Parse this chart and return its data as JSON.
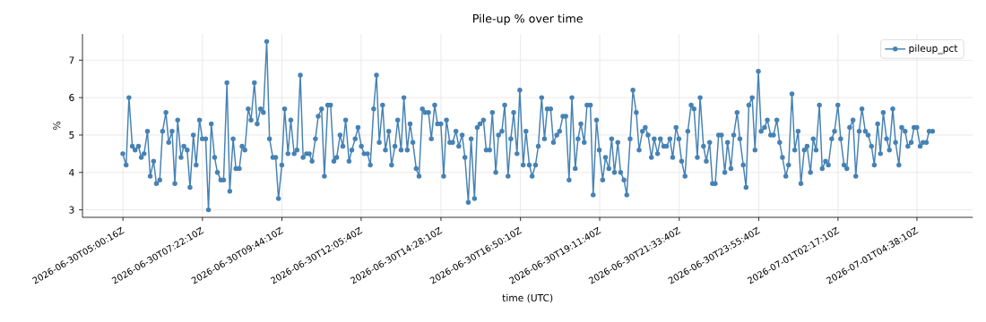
{
  "chart_data": {
    "type": "line",
    "title": "Pile-up % over time",
    "xlabel": "time (UTC)",
    "ylabel": "%",
    "x": [
      "2026-06-30T05:00",
      "2026-06-30T05:06",
      "2026-06-30T05:11",
      "2026-06-30T05:17",
      "2026-06-30T05:22",
      "2026-06-30T05:28",
      "2026-06-30T05:33",
      "2026-06-30T05:38",
      "2026-06-30T05:44",
      "2026-06-30T05:49",
      "2026-06-30T05:55",
      "2026-06-30T06:00",
      "2026-06-30T06:06",
      "2026-06-30T06:11",
      "2026-06-30T06:17",
      "2026-06-30T06:22",
      "2026-06-30T06:28",
      "2026-06-30T06:33",
      "2026-06-30T06:38",
      "2026-06-30T06:44",
      "2026-06-30T06:49",
      "2026-06-30T06:55",
      "2026-06-30T07:00",
      "2026-06-30T07:06",
      "2026-06-30T07:11",
      "2026-06-30T07:17",
      "2026-06-30T07:22",
      "2026-06-30T07:28",
      "2026-06-30T07:33",
      "2026-06-30T07:38",
      "2026-06-30T07:44",
      "2026-06-30T07:49",
      "2026-06-30T07:55",
      "2026-06-30T08:00",
      "2026-06-30T08:06",
      "2026-06-30T08:11",
      "2026-06-30T08:17",
      "2026-06-30T08:22",
      "2026-06-30T08:28",
      "2026-06-30T08:33",
      "2026-06-30T08:38",
      "2026-06-30T08:44",
      "2026-06-30T08:49",
      "2026-06-30T08:55",
      "2026-06-30T09:00",
      "2026-06-30T09:06",
      "2026-06-30T09:11",
      "2026-06-30T09:17",
      "2026-06-30T09:22",
      "2026-06-30T09:28",
      "2026-06-30T09:33",
      "2026-06-30T09:38",
      "2026-06-30T09:44",
      "2026-06-30T09:49",
      "2026-06-30T09:55",
      "2026-06-30T10:00",
      "2026-06-30T10:06",
      "2026-06-30T10:11",
      "2026-06-30T10:17",
      "2026-06-30T10:22",
      "2026-06-30T10:28",
      "2026-06-30T10:33",
      "2026-06-30T10:38",
      "2026-06-30T10:44",
      "2026-06-30T10:49",
      "2026-06-30T10:55",
      "2026-06-30T11:00",
      "2026-06-30T11:06",
      "2026-06-30T11:11",
      "2026-06-30T11:17",
      "2026-06-30T11:22",
      "2026-06-30T11:28",
      "2026-06-30T11:33",
      "2026-06-30T11:38",
      "2026-06-30T11:44",
      "2026-06-30T11:49",
      "2026-06-30T11:55",
      "2026-06-30T12:00",
      "2026-06-30T12:06",
      "2026-06-30T12:11",
      "2026-06-30T12:17",
      "2026-06-30T12:22",
      "2026-06-30T12:28",
      "2026-06-30T12:33",
      "2026-06-30T12:38",
      "2026-06-30T12:44",
      "2026-06-30T12:49",
      "2026-06-30T12:55",
      "2026-06-30T13:00",
      "2026-06-30T13:06",
      "2026-06-30T13:11",
      "2026-06-30T13:17",
      "2026-06-30T13:22",
      "2026-06-30T13:28",
      "2026-06-30T13:33",
      "2026-06-30T13:38",
      "2026-06-30T13:44",
      "2026-06-30T13:49",
      "2026-06-30T13:55",
      "2026-06-30T14:00",
      "2026-06-30T14:06",
      "2026-06-30T14:11",
      "2026-06-30T14:17",
      "2026-06-30T14:22",
      "2026-06-30T14:28",
      "2026-06-30T14:33",
      "2026-06-30T14:38",
      "2026-06-30T14:44",
      "2026-06-30T14:49",
      "2026-06-30T14:55",
      "2026-06-30T15:00",
      "2026-06-30T15:06",
      "2026-06-30T15:11",
      "2026-06-30T15:17",
      "2026-06-30T15:22",
      "2026-06-30T15:28",
      "2026-06-30T15:33",
      "2026-06-30T15:38",
      "2026-06-30T15:44",
      "2026-06-30T15:49",
      "2026-06-30T15:55",
      "2026-06-30T16:00",
      "2026-06-30T16:06",
      "2026-06-30T16:11",
      "2026-06-30T16:17",
      "2026-06-30T16:22",
      "2026-06-30T16:28",
      "2026-06-30T16:33",
      "2026-06-30T16:38",
      "2026-06-30T16:44",
      "2026-06-30T16:49",
      "2026-06-30T16:55",
      "2026-06-30T17:00",
      "2026-06-30T17:06",
      "2026-06-30T17:11",
      "2026-06-30T17:17",
      "2026-06-30T17:22",
      "2026-06-30T17:28",
      "2026-06-30T17:33",
      "2026-06-30T17:38",
      "2026-06-30T17:44",
      "2026-06-30T17:49",
      "2026-06-30T17:55",
      "2026-06-30T18:00",
      "2026-06-30T18:06",
      "2026-06-30T18:11",
      "2026-06-30T18:17",
      "2026-06-30T18:22",
      "2026-06-30T18:28",
      "2026-06-30T18:33",
      "2026-06-30T18:38",
      "2026-06-30T18:44",
      "2026-06-30T18:49",
      "2026-06-30T18:55",
      "2026-06-30T19:00",
      "2026-06-30T19:06",
      "2026-06-30T19:11",
      "2026-06-30T19:17",
      "2026-06-30T19:22",
      "2026-06-30T19:28",
      "2026-06-30T19:33",
      "2026-06-30T19:38",
      "2026-06-30T19:44",
      "2026-06-30T19:49",
      "2026-06-30T19:55",
      "2026-06-30T20:00",
      "2026-06-30T20:06",
      "2026-06-30T20:11",
      "2026-06-30T20:17",
      "2026-06-30T20:22",
      "2026-06-30T20:28",
      "2026-06-30T20:33",
      "2026-06-30T20:38",
      "2026-06-30T20:44",
      "2026-06-30T20:49",
      "2026-06-30T20:55",
      "2026-06-30T21:00",
      "2026-06-30T21:06",
      "2026-06-30T21:11",
      "2026-06-30T21:17",
      "2026-06-30T21:22",
      "2026-06-30T21:28",
      "2026-06-30T21:33",
      "2026-06-30T21:38",
      "2026-06-30T21:44",
      "2026-06-30T21:49",
      "2026-06-30T21:55",
      "2026-06-30T22:00",
      "2026-06-30T22:06",
      "2026-06-30T22:11",
      "2026-06-30T22:17",
      "2026-06-30T22:22",
      "2026-06-30T22:28",
      "2026-06-30T22:33",
      "2026-06-30T22:38",
      "2026-06-30T22:44",
      "2026-06-30T22:49",
      "2026-06-30T22:55",
      "2026-06-30T23:00",
      "2026-06-30T23:06",
      "2026-06-30T23:11",
      "2026-06-30T23:17",
      "2026-06-30T23:22",
      "2026-06-30T23:28",
      "2026-06-30T23:33",
      "2026-06-30T23:38",
      "2026-06-30T23:44",
      "2026-06-30T23:49",
      "2026-06-30T23:55",
      "2026-07-01T00:00",
      "2026-07-01T00:06",
      "2026-07-01T00:11",
      "2026-07-01T00:17",
      "2026-07-01T00:22",
      "2026-07-01T00:28",
      "2026-07-01T00:33",
      "2026-07-01T00:38",
      "2026-07-01T00:44",
      "2026-07-01T00:49",
      "2026-07-01T00:55",
      "2026-07-01T01:00",
      "2026-07-01T01:06",
      "2026-07-01T01:11",
      "2026-07-01T01:17",
      "2026-07-01T01:22",
      "2026-07-01T01:28",
      "2026-07-01T01:33",
      "2026-07-01T01:38",
      "2026-07-01T01:44",
      "2026-07-01T01:49",
      "2026-07-01T01:55",
      "2026-07-01T02:00",
      "2026-07-01T02:06",
      "2026-07-01T02:11",
      "2026-07-01T02:17",
      "2026-07-01T02:22",
      "2026-07-01T02:28",
      "2026-07-01T02:33",
      "2026-07-01T02:38",
      "2026-07-01T02:44",
      "2026-07-01T02:49",
      "2026-07-01T02:55",
      "2026-07-01T03:00",
      "2026-07-01T03:06",
      "2026-07-01T03:11",
      "2026-07-01T03:17",
      "2026-07-01T03:22",
      "2026-07-01T03:28",
      "2026-07-01T03:33",
      "2026-07-01T03:38",
      "2026-07-01T03:44",
      "2026-07-01T03:49",
      "2026-07-01T03:55",
      "2026-07-01T04:00",
      "2026-07-01T04:06",
      "2026-07-01T04:11",
      "2026-07-01T04:17",
      "2026-07-01T04:22",
      "2026-07-01T04:28",
      "2026-07-01T04:33",
      "2026-07-01T04:38",
      "2026-07-01T04:44",
      "2026-07-01T04:49",
      "2026-07-01T04:55",
      "2026-07-01T05:00",
      "2026-07-01T05:06"
    ],
    "series": [
      {
        "name": "pileup_pct",
        "color": "#4682b4",
        "values": [
          4.5,
          4.2,
          6.0,
          4.7,
          4.6,
          4.7,
          4.4,
          4.5,
          5.1,
          3.9,
          4.3,
          3.7,
          3.8,
          5.1,
          5.6,
          4.8,
          5.1,
          3.7,
          5.4,
          4.4,
          4.7,
          4.6,
          3.6,
          5.0,
          4.2,
          5.4,
          4.9,
          4.9,
          3.0,
          5.3,
          4.4,
          4.0,
          3.8,
          3.8,
          6.4,
          3.5,
          4.9,
          4.1,
          4.1,
          4.7,
          4.6,
          5.7,
          5.4,
          6.4,
          5.3,
          5.7,
          5.6,
          7.5,
          4.9,
          4.4,
          4.4,
          3.3,
          4.2,
          5.7,
          4.5,
          5.4,
          4.5,
          4.6,
          6.6,
          4.4,
          4.5,
          4.5,
          4.3,
          4.9,
          5.5,
          5.7,
          3.9,
          5.8,
          5.8,
          4.3,
          4.4,
          5.0,
          4.7,
          5.4,
          4.3,
          4.6,
          4.9,
          5.2,
          4.7,
          4.5,
          4.5,
          4.2,
          5.7,
          6.6,
          4.8,
          5.8,
          4.6,
          5.1,
          4.2,
          4.7,
          5.4,
          4.6,
          6.0,
          4.6,
          5.3,
          4.8,
          4.1,
          3.9,
          5.7,
          5.6,
          5.6,
          4.9,
          5.8,
          5.3,
          5.3,
          3.9,
          5.4,
          4.8,
          4.8,
          5.1,
          4.7,
          5.0,
          4.4,
          3.2,
          4.9,
          3.3,
          5.2,
          5.3,
          5.4,
          4.6,
          4.6,
          5.6,
          4.0,
          5.0,
          5.1,
          5.8,
          3.9,
          4.9,
          5.6,
          4.5,
          6.2,
          4.2,
          5.1,
          4.2,
          3.9,
          4.2,
          4.7,
          6.0,
          4.9,
          5.7,
          5.7,
          4.8,
          5.0,
          5.1,
          5.5,
          5.5,
          3.8,
          6.0,
          4.1,
          4.9,
          5.3,
          4.8,
          5.8,
          5.8,
          3.4,
          5.4,
          4.6,
          3.8,
          4.4,
          4.1,
          4.9,
          4.0,
          4.8,
          4.0,
          3.8,
          3.4,
          4.9,
          6.2,
          5.6,
          4.6,
          5.1,
          5.2,
          5.0,
          4.4,
          4.9,
          4.5,
          4.9,
          4.7,
          4.7,
          4.9,
          4.4,
          5.2,
          4.9,
          4.3,
          3.9,
          5.1,
          5.8,
          5.7,
          4.4,
          6.0,
          4.7,
          4.3,
          4.8,
          3.7,
          3.7,
          5.0,
          5.0,
          4.0,
          4.8,
          4.1,
          5.0,
          5.6,
          4.9,
          4.2,
          3.6,
          5.8,
          6.0,
          4.6,
          6.7,
          5.1,
          5.2,
          5.4,
          5.0,
          5.0,
          5.4,
          4.8,
          4.4,
          3.9,
          4.2,
          6.1,
          4.6,
          5.1,
          3.7,
          4.6,
          4.7,
          4.0,
          4.9,
          4.6,
          5.8,
          4.1,
          4.3,
          4.2,
          4.9,
          5.1,
          5.8,
          4.9,
          4.2,
          4.1,
          5.2,
          5.4,
          3.9,
          5.1,
          5.7,
          5.1,
          5.0,
          4.7,
          4.2,
          5.3,
          4.5,
          5.6,
          4.9,
          4.6,
          5.7,
          4.8,
          4.2,
          5.2,
          5.1,
          4.7,
          4.8,
          5.2,
          5.2,
          4.7,
          4.8,
          4.8,
          5.1,
          5.1
        ]
      }
    ],
    "xlim": [
      "2026-06-30T03:48",
      "2026-07-01T06:18"
    ],
    "ylim": [
      2.8,
      7.7
    ],
    "xticks": [
      {
        "value": "2026-06-30T05:00:16",
        "label": "2026-06-30T05:00:16Z"
      },
      {
        "value": "2026-06-30T07:22:10",
        "label": "2026-06-30T07:22:10Z"
      },
      {
        "value": "2026-06-30T09:44:10",
        "label": "2026-06-30T09:44:10Z"
      },
      {
        "value": "2026-06-30T12:05:40",
        "label": "2026-06-30T12:05:40Z"
      },
      {
        "value": "2026-06-30T14:28:10",
        "label": "2026-06-30T14:28:10Z"
      },
      {
        "value": "2026-06-30T16:50:10",
        "label": "2026-06-30T16:50:10Z"
      },
      {
        "value": "2026-06-30T19:11:40",
        "label": "2026-06-30T19:11:40Z"
      },
      {
        "value": "2026-06-30T21:33:40",
        "label": "2026-06-30T21:33:40Z"
      },
      {
        "value": "2026-06-30T23:55:40",
        "label": "2026-06-30T23:55:40Z"
      },
      {
        "value": "2026-07-01T02:17:10",
        "label": "2026-07-01T02:17:10Z"
      },
      {
        "value": "2026-07-01T04:38:10",
        "label": "2026-07-01T04:38:10Z"
      }
    ],
    "yticks": [
      3,
      4,
      5,
      6,
      7
    ],
    "grid": true,
    "legend": "top right",
    "marker": "circle",
    "line_style": "solid"
  }
}
